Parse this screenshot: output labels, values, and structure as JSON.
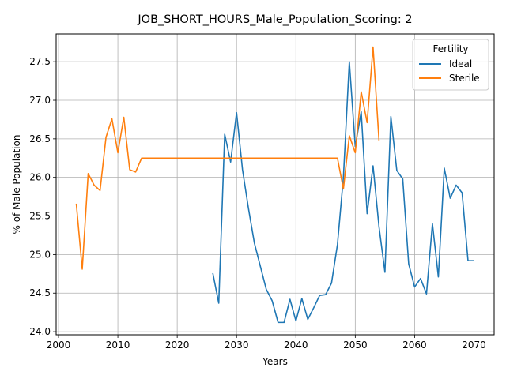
{
  "chart_data": {
    "type": "line",
    "title": "JOB_SHORT_HOURS_Male_Population_Scoring: 2",
    "xlabel": "Years",
    "ylabel": "% of Male Population",
    "xlim": [
      1999.6,
      2073.4
    ],
    "ylim": [
      23.96,
      27.86
    ],
    "xticks": [
      2000,
      2010,
      2020,
      2030,
      2040,
      2050,
      2060,
      2070
    ],
    "yticks": [
      24.0,
      24.5,
      25.0,
      25.5,
      26.0,
      26.5,
      27.0,
      27.5
    ],
    "ytick_labels": [
      "24.0",
      "24.5",
      "25.0",
      "25.5",
      "26.0",
      "26.5",
      "27.0",
      "27.5"
    ],
    "grid": true,
    "legend": {
      "title": "Fertility",
      "placement": "upper right"
    },
    "series": [
      {
        "name": "Ideal",
        "color": "#1f77b4",
        "x": [
          2026,
          2027,
          2028,
          2029,
          2030,
          2031,
          2032,
          2033,
          2034,
          2035,
          2036,
          2037,
          2038,
          2039,
          2040,
          2041,
          2042,
          2043,
          2044,
          2045,
          2046,
          2047,
          2048,
          2049,
          2050,
          2051,
          2052,
          2053,
          2054,
          2055,
          2056,
          2057,
          2058,
          2059,
          2060,
          2061,
          2062,
          2063,
          2064,
          2065,
          2066,
          2067,
          2068,
          2069,
          2070
        ],
        "y": [
          24.76,
          24.37,
          26.56,
          26.2,
          26.84,
          26.1,
          25.6,
          25.15,
          24.85,
          24.55,
          24.4,
          24.12,
          24.12,
          24.42,
          24.14,
          24.43,
          24.16,
          24.31,
          24.47,
          24.48,
          24.63,
          25.13,
          26.0,
          27.5,
          26.4,
          26.85,
          25.53,
          26.15,
          25.36,
          24.77,
          26.79,
          26.09,
          25.98,
          24.88,
          24.58,
          24.69,
          24.49,
          25.4,
          24.71,
          26.12,
          25.73,
          25.9,
          25.8,
          24.92,
          24.92
        ]
      },
      {
        "name": "Sterile",
        "color": "#ff7f0e",
        "x": [
          2003,
          2004,
          2005,
          2006,
          2007,
          2008,
          2009,
          2010,
          2011,
          2012,
          2013,
          2014,
          2015,
          2016,
          2017,
          2018,
          2019,
          2020,
          2021,
          2022,
          2023,
          2024,
          2025,
          2026,
          2027,
          2028,
          2029,
          2030,
          2031,
          2032,
          2033,
          2034,
          2035,
          2036,
          2037,
          2038,
          2039,
          2040,
          2041,
          2042,
          2043,
          2044,
          2045,
          2046,
          2047,
          2048,
          2049,
          2050,
          2051,
          2052,
          2053,
          2054
        ],
        "y": [
          25.66,
          24.81,
          26.05,
          25.9,
          25.83,
          26.52,
          26.76,
          26.32,
          26.78,
          26.1,
          26.07,
          26.25,
          26.25,
          26.25,
          26.25,
          26.25,
          26.25,
          26.25,
          26.25,
          26.25,
          26.25,
          26.25,
          26.25,
          26.25,
          26.25,
          26.25,
          26.25,
          26.25,
          26.25,
          26.25,
          26.25,
          26.25,
          26.25,
          26.25,
          26.25,
          26.25,
          26.25,
          26.25,
          26.25,
          26.25,
          26.25,
          26.25,
          26.25,
          26.25,
          26.25,
          25.85,
          26.54,
          26.32,
          27.11,
          26.71,
          27.69,
          26.48
        ]
      }
    ]
  }
}
